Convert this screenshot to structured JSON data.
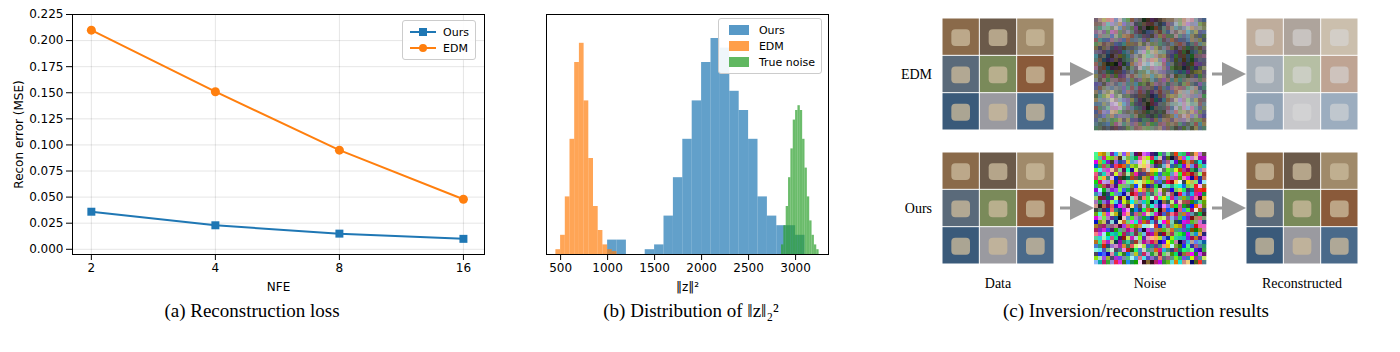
{
  "chart_data": [
    {
      "type": "line",
      "title": "(a) Reconstruction loss",
      "x_label": "NFE",
      "y_label": "Recon error (MSE)",
      "x": [
        2,
        4,
        8,
        16
      ],
      "series": [
        {
          "name": "Ours",
          "color": "#1f77b4",
          "marker": "square",
          "values": [
            0.036,
            0.023,
            0.015,
            0.01
          ]
        },
        {
          "name": "EDM",
          "color": "#ff7f0e",
          "marker": "circle",
          "values": [
            0.21,
            0.151,
            0.095,
            0.048
          ]
        }
      ],
      "log": "x",
      "xlim": [
        1.8,
        18
      ],
      "xticks": [
        2,
        4,
        8,
        16
      ],
      "ylim": [
        -0.005,
        0.225
      ],
      "yticks": [
        {
          "value": 0,
          "label": "0.000"
        },
        0.025,
        {
          "value": 0.05,
          "label": "0.050"
        },
        0.075,
        {
          "value": 0.1,
          "label": "0.100"
        },
        0.125,
        {
          "value": 0.15,
          "label": "0.150"
        },
        0.175,
        {
          "value": 0.2,
          "label": "0.200"
        },
        0.225
      ],
      "grid": true,
      "legend": "upper right"
    },
    {
      "type": "histogram",
      "title": "(b) Distribution of ‖z‖₂²",
      "x_label": "‖z‖²",
      "series": [
        {
          "name": "Ours",
          "color": "#1f77b4",
          "bins": [
            1000,
            1100,
            1200,
            1300,
            1400,
            1500,
            1600,
            1700,
            1800,
            1900,
            2000,
            2100,
            2200,
            2300,
            2400,
            2500,
            2600,
            2700,
            2800,
            2900,
            3000,
            3100
          ],
          "counts": [
            15,
            15,
            0,
            0,
            5,
            10,
            40,
            80,
            120,
            160,
            200,
            225,
            215,
            170,
            150,
            120,
            60,
            40,
            30,
            30,
            20
          ]
        },
        {
          "name": "EDM",
          "color": "#ff7f0e",
          "bins": [
            450,
            500,
            550,
            600,
            650,
            700,
            750,
            800,
            850,
            900,
            950,
            1000,
            1050,
            1100
          ],
          "counts": [
            5,
            20,
            60,
            120,
            200,
            220,
            160,
            100,
            50,
            25,
            10,
            5,
            3
          ]
        },
        {
          "name": "True noise",
          "color": "#2ca02c",
          "bins": [
            2850,
            2875,
            2900,
            2925,
            2950,
            2975,
            3000,
            3025,
            3050,
            3075,
            3100,
            3125,
            3150,
            3175,
            3200,
            3225,
            3250
          ],
          "counts": [
            10,
            30,
            50,
            80,
            110,
            140,
            150,
            155,
            150,
            120,
            90,
            60,
            35,
            20,
            10,
            5
          ]
        }
      ],
      "xlim": [
        350,
        3350
      ],
      "xticks": [
        500,
        1000,
        1500,
        2000,
        2500,
        3000
      ],
      "ylim": [
        0,
        250
      ],
      "tick_labels": "x",
      "legend": "upper right"
    },
    {
      "type": "image_grid",
      "title": "(c) Inversion/reconstruction results",
      "rows": [
        "EDM",
        "Ours"
      ],
      "columns": [
        "Data",
        "Noise",
        "Reconstructed"
      ]
    }
  ]
}
